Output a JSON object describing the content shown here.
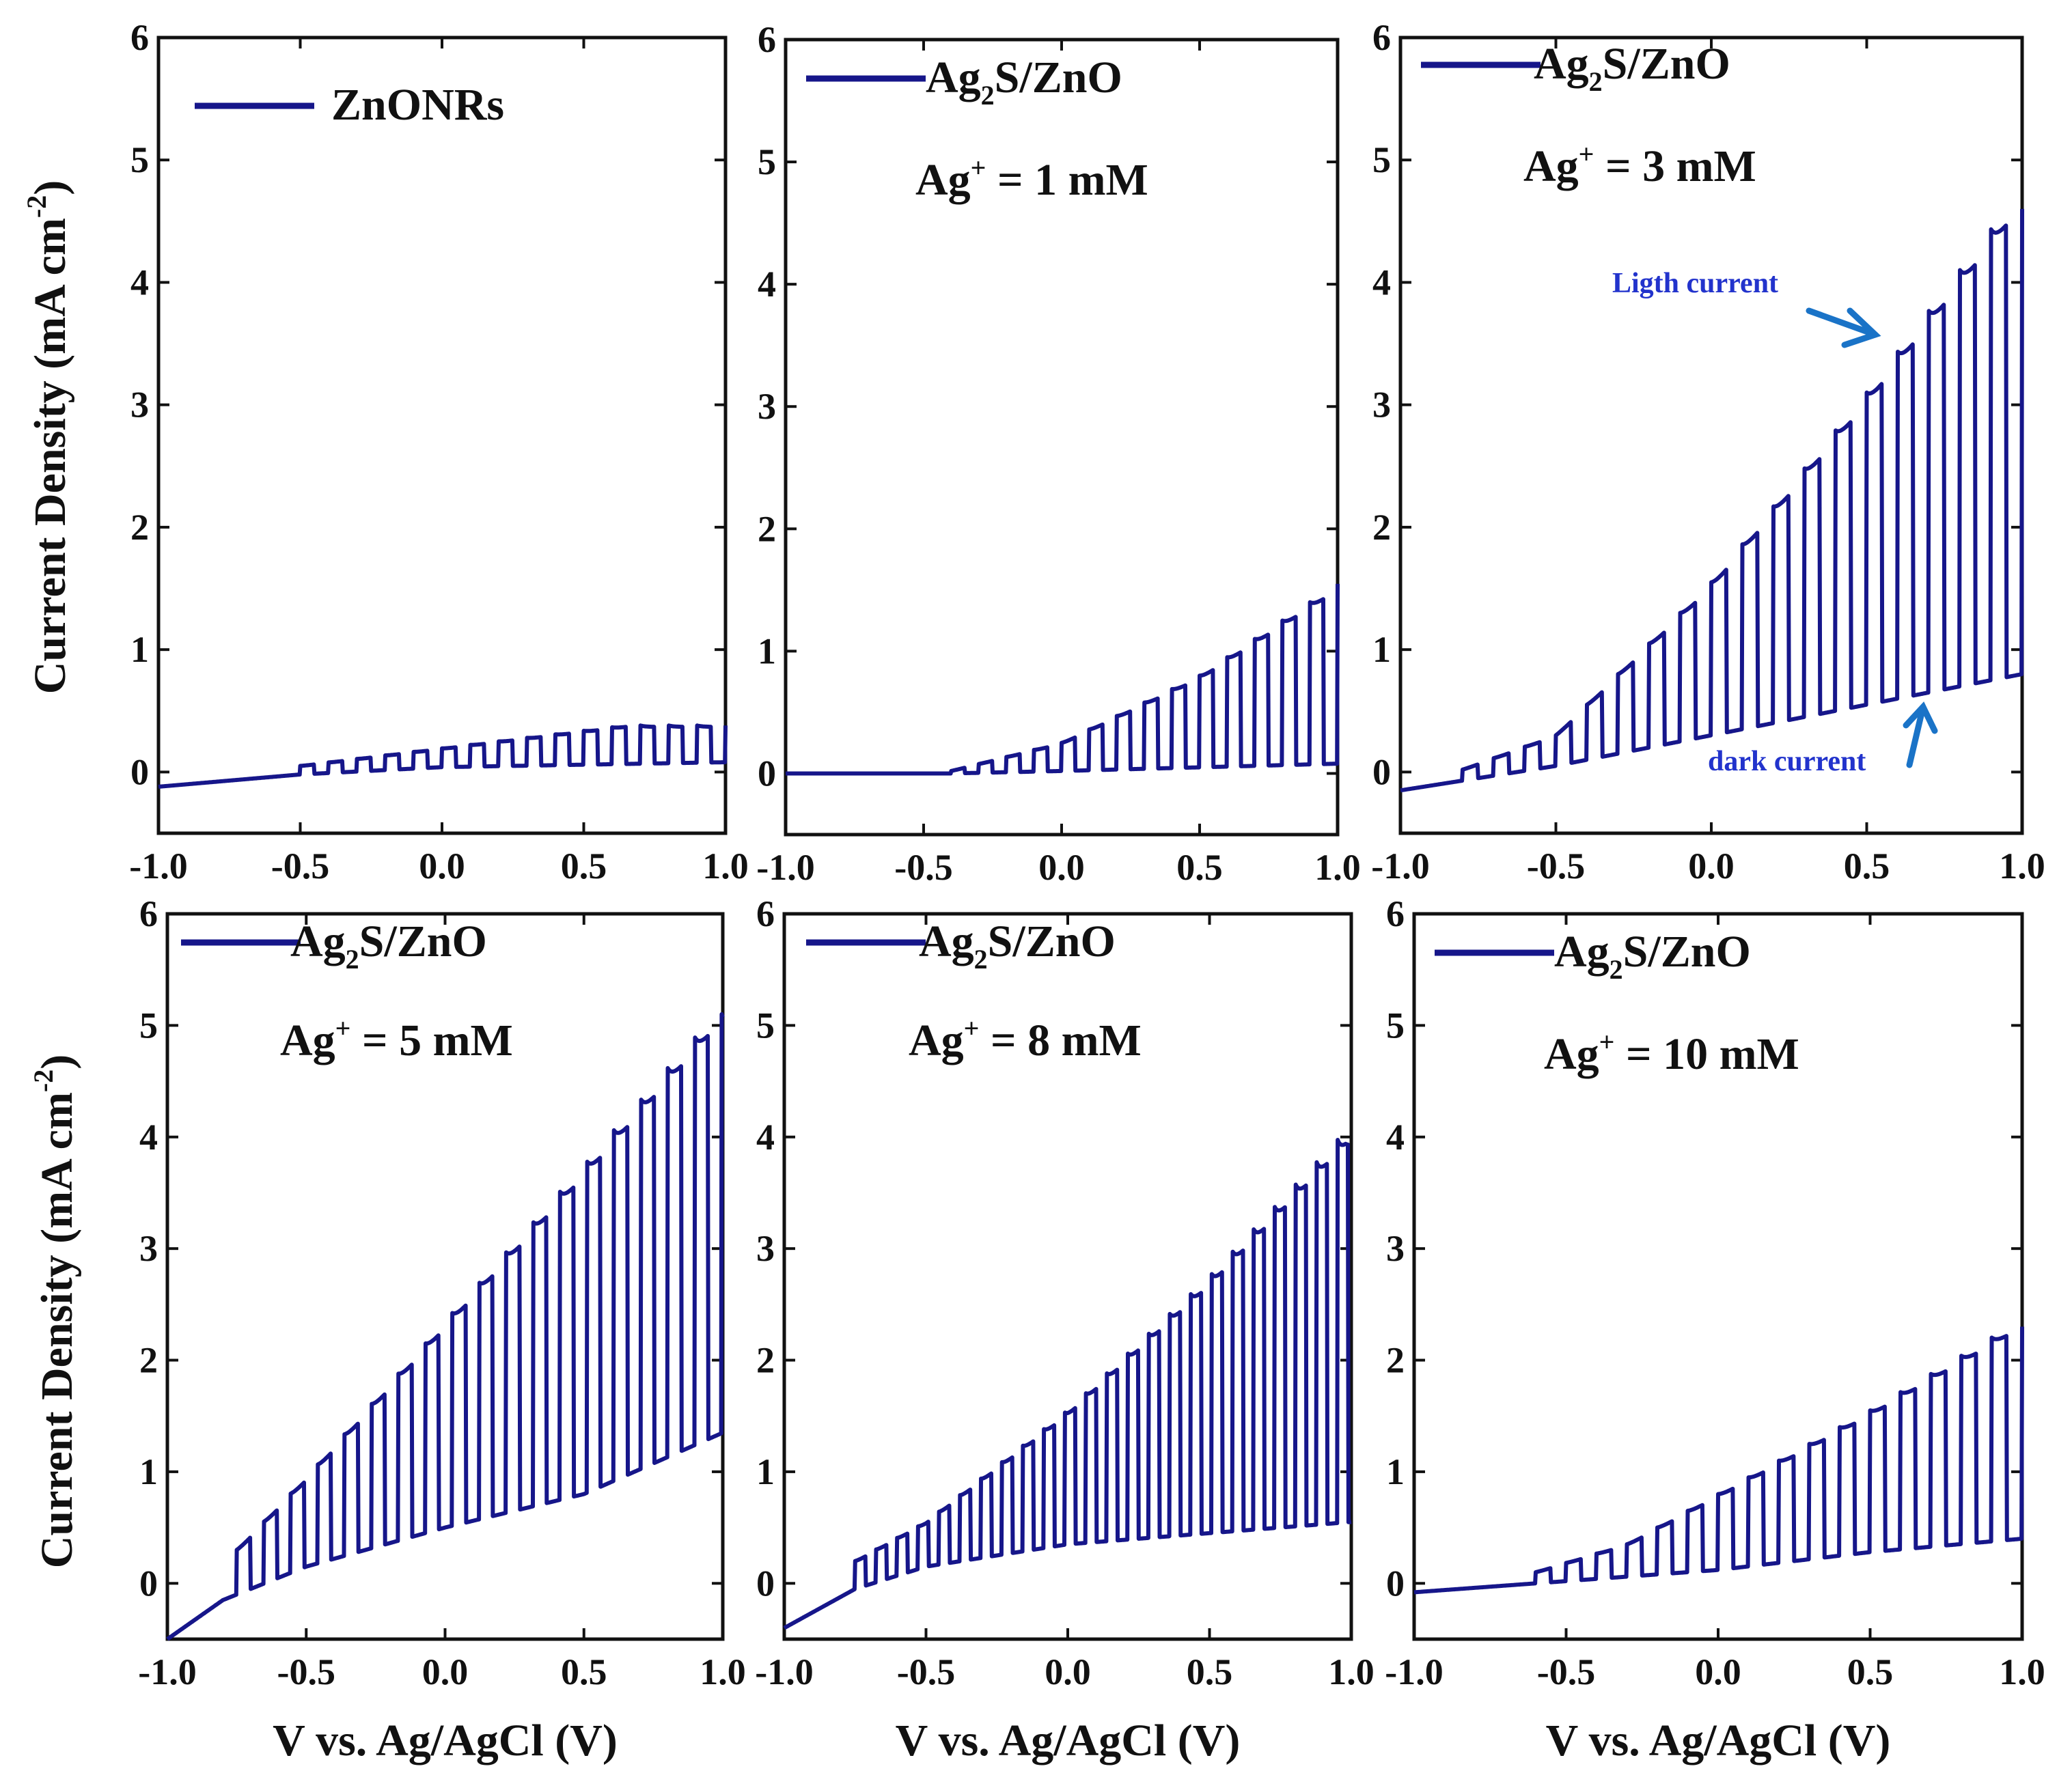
{
  "figure": {
    "series_color": "#16168a",
    "annotation_color": "#1a73c7",
    "annotation_text_color": "#2233cc",
    "ylabel_top": "Current Density (mA cm",
    "ylabel_bottom": "Current Density (mA cm",
    "ylabel_sup": "-2",
    "ylabel_close": ")"
  },
  "chart_data": [
    {
      "type": "line",
      "panel": "a",
      "legend": "ZnONRs",
      "xlim": [
        -1.0,
        1.0
      ],
      "ylim": [
        -0.5,
        6
      ],
      "xticks": [
        "-1.0",
        "-0.5",
        "0.0",
        "0.5",
        "1.0"
      ],
      "yticks": [
        "0",
        "1",
        "2",
        "3",
        "4",
        "5",
        "6"
      ],
      "xlabel": "",
      "base": {
        "x": [
          -1.0,
          -0.5,
          0.0,
          1.0
        ],
        "y": [
          -0.12,
          -0.02,
          0.04,
          0.08
        ]
      },
      "light": {
        "x": [
          -0.5,
          1.0
        ],
        "y": [
          0.05,
          0.48
        ]
      },
      "pulse": {
        "start": -0.5,
        "period": 0.1,
        "duty": 0.5
      },
      "light_clip": 0.38
    },
    {
      "type": "line",
      "panel": "b",
      "legend_base": "Ag",
      "legend_sub": "2",
      "legend_rest": "S/ZnO",
      "annotation_base": "Ag",
      "annotation_sup": "+",
      "annotation_rest": " = 1 mM",
      "xlim": [
        -1.0,
        1.0
      ],
      "ylim": [
        -0.5,
        6
      ],
      "xticks": [
        "-1.0",
        "-0.5",
        "0.0",
        "0.5",
        "1.0"
      ],
      "yticks": [
        "0",
        "1",
        "2",
        "3",
        "4",
        "5",
        "6"
      ],
      "xlabel": "",
      "base": {
        "x": [
          -1.0,
          -0.4,
          0.0,
          1.0
        ],
        "y": [
          0.0,
          0.0,
          0.02,
          0.08
        ]
      },
      "light": {
        "x": [
          -0.4,
          0.0,
          0.5,
          1.0
        ],
        "y": [
          0.02,
          0.25,
          0.8,
          1.55
        ]
      },
      "pulse": {
        "start": -0.4,
        "period": 0.1,
        "duty": 0.5
      }
    },
    {
      "type": "line",
      "panel": "c",
      "legend_base": "Ag",
      "legend_sub": "2",
      "legend_rest": "S/ZnO",
      "annotation_base": "Ag",
      "annotation_sup": "+",
      "annotation_rest": " = 3 mM",
      "xlim": [
        -1.0,
        1.0
      ],
      "ylim": [
        -0.5,
        6
      ],
      "xticks": [
        "-1.0",
        "-0.5",
        "0.0",
        "0.5",
        "1.0"
      ],
      "yticks": [
        "0",
        "1",
        "2",
        "3",
        "4",
        "5",
        "6"
      ],
      "xlabel": "",
      "base": {
        "x": [
          -1.0,
          -0.5,
          0.0,
          0.5,
          1.0
        ],
        "y": [
          -0.15,
          0.05,
          0.3,
          0.55,
          0.8
        ]
      },
      "light": {
        "x": [
          -0.8,
          -0.5,
          0.0,
          0.5,
          0.95
        ],
        "y": [
          0.02,
          0.3,
          1.55,
          3.1,
          4.6
        ]
      },
      "pulse": {
        "start": -0.8,
        "period": 0.1,
        "duty": 0.5
      },
      "labels": {
        "light": "Ligth current",
        "dark": "dark current"
      }
    },
    {
      "type": "line",
      "panel": "d",
      "legend_base": "Ag",
      "legend_sub": "2",
      "legend_rest": "S/ZnO",
      "annotation_base": "Ag",
      "annotation_sup": "+",
      "annotation_rest": " = 5 mM",
      "xlim": [
        -1.0,
        1.0
      ],
      "ylim": [
        -0.5,
        6
      ],
      "xticks": [
        "-1.0",
        "-0.5",
        "0.0",
        "0.5",
        "1.0"
      ],
      "yticks": [
        "0",
        "1",
        "2",
        "3",
        "4",
        "5",
        "6"
      ],
      "xlabel": "V vs. Ag/AgCl (V)",
      "base": {
        "x": [
          -1.0,
          -0.8,
          -0.5,
          0.0,
          0.5,
          1.0
        ],
        "y": [
          -0.5,
          -0.15,
          0.15,
          0.5,
          0.8,
          1.35
        ]
      },
      "light": {
        "x": [
          -0.75,
          -0.5,
          0.0,
          0.5,
          0.97
        ],
        "y": [
          0.3,
          0.95,
          2.35,
          3.75,
          5.1
        ]
      },
      "pulse": {
        "start": -0.75,
        "period": 0.097,
        "duty": 0.5
      }
    },
    {
      "type": "line",
      "panel": "e",
      "legend_base": "Ag",
      "legend_sub": "2",
      "legend_rest": "S/ZnO",
      "annotation_base": "Ag",
      "annotation_sup": "+",
      "annotation_rest": " = 8 mM",
      "xlim": [
        -1.0,
        1.0
      ],
      "ylim": [
        -0.5,
        6
      ],
      "xticks": [
        "-1.0",
        "-0.5",
        "0.0",
        "0.5",
        "1.0"
      ],
      "yticks": [
        "0",
        "1",
        "2",
        "3",
        "4",
        "5",
        "6"
      ],
      "xlabel": "V vs. Ag/AgCl (V)",
      "base": {
        "x": [
          -1.0,
          -0.75,
          -0.5,
          0.0,
          0.5,
          1.0
        ],
        "y": [
          -0.4,
          -0.05,
          0.15,
          0.35,
          0.45,
          0.55
        ]
      },
      "light": {
        "x": [
          -0.75,
          -0.5,
          0.0,
          0.5,
          0.98
        ],
        "y": [
          0.2,
          0.55,
          1.55,
          2.75,
          4.05
        ]
      },
      "pulse": {
        "start": -0.75,
        "period": 0.074,
        "duty": 0.5
      }
    },
    {
      "type": "line",
      "panel": "f",
      "legend_base": "Ag",
      "legend_sub": "2",
      "legend_rest": "S/ZnO",
      "annotation_base": "Ag",
      "annotation_sup": "+",
      "annotation_rest": " = 10 mM",
      "xlim": [
        -1.0,
        1.0
      ],
      "ylim": [
        -0.5,
        6
      ],
      "xticks": [
        "-1.0",
        "-0.5",
        "0.0",
        "0.5",
        "1.0"
      ],
      "yticks": [
        "0",
        "1",
        "2",
        "3",
        "4",
        "5",
        "6"
      ],
      "xlabel": "V vs. Ag/AgCl (V)",
      "base": {
        "x": [
          -1.0,
          -0.5,
          0.0,
          0.5,
          1.0
        ],
        "y": [
          -0.08,
          0.02,
          0.12,
          0.28,
          0.4
        ]
      },
      "light": {
        "x": [
          -0.6,
          -0.3,
          0.0,
          0.5,
          0.96
        ],
        "y": [
          0.1,
          0.35,
          0.8,
          1.55,
          2.3
        ]
      },
      "pulse": {
        "start": -0.6,
        "period": 0.1,
        "duty": 0.5
      }
    }
  ]
}
